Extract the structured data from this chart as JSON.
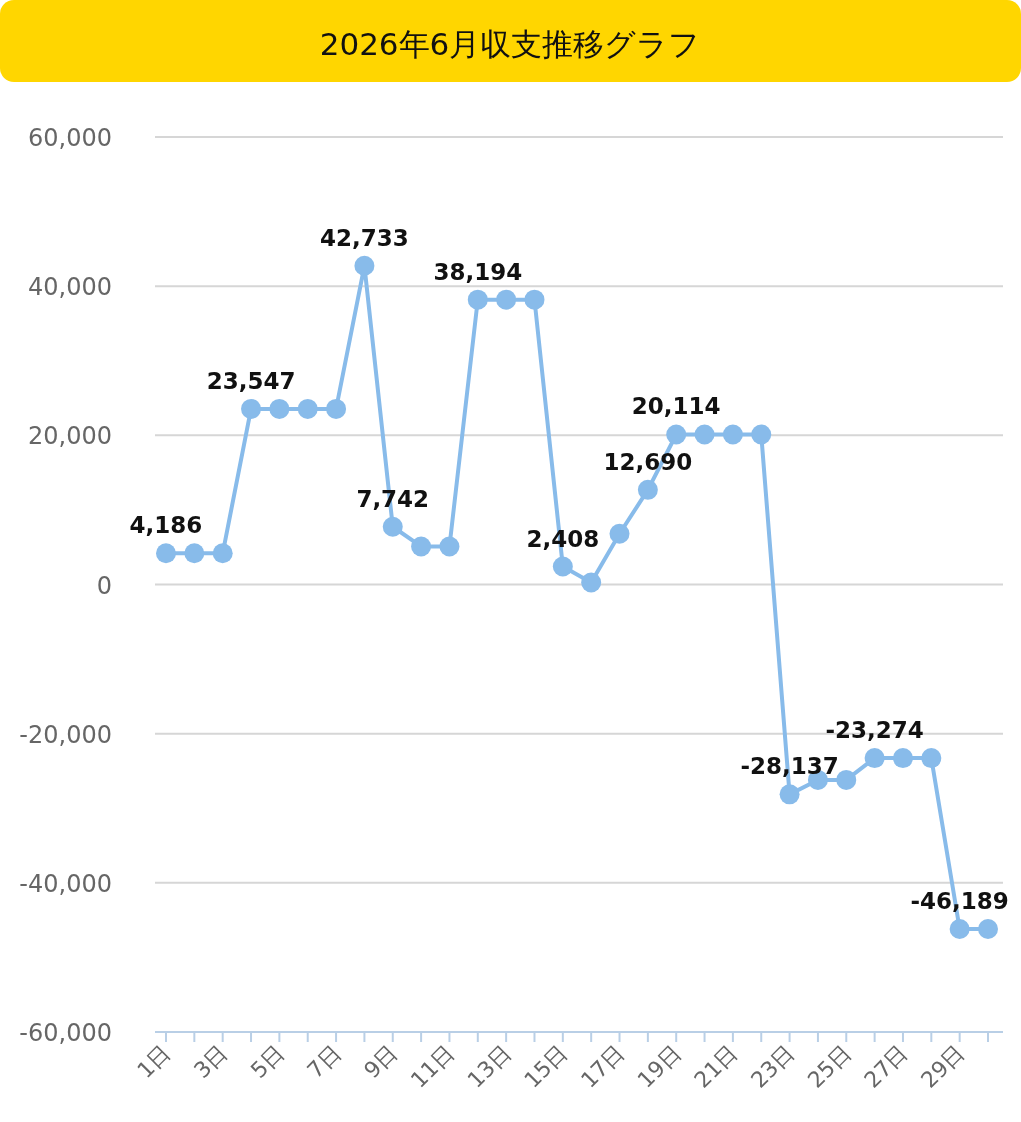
{
  "chart_data": {
    "type": "line",
    "title": "2026年6月収支推移グラフ",
    "categories": [
      "1日",
      null,
      "3日",
      null,
      "5日",
      null,
      "7日",
      null,
      "9日",
      null,
      "11日",
      null,
      "13日",
      null,
      "15日",
      null,
      "17日",
      null,
      "19日",
      null,
      "21日",
      null,
      "23日",
      null,
      "25日",
      null,
      "27日",
      null,
      "29日",
      null
    ],
    "values": [
      4186,
      4186,
      4186,
      23547,
      23547,
      23547,
      23547,
      42733,
      7742,
      5100,
      5100,
      38194,
      38194,
      38194,
      2408,
      270,
      6800,
      12690,
      20114,
      20114,
      20114,
      20114,
      -28137,
      -26200,
      -26200,
      -23274,
      -23274,
      -23274,
      -46189,
      -46189
    ],
    "value_labels": [
      "4,186",
      null,
      null,
      "23,547",
      null,
      null,
      null,
      "42,733",
      "7,742",
      null,
      null,
      "38,194",
      null,
      null,
      "2,408",
      null,
      null,
      "12,690",
      "20,114",
      null,
      null,
      null,
      "-28,137",
      null,
      null,
      "-23,274",
      null,
      null,
      "-46,189",
      null
    ],
    "color": "#88bbea",
    "marker": "circle",
    "ylim": [
      -60000,
      60000
    ],
    "yticks": [
      {
        "value": -60000,
        "label": "-60,000"
      },
      {
        "value": -40000,
        "label": "-40,000"
      },
      {
        "value": -20000,
        "label": "-20,000"
      },
      0,
      {
        "value": 20000,
        "label": "20,000"
      },
      {
        "value": 40000,
        "label": "40,000"
      },
      {
        "value": 60000,
        "label": "60,000"
      }
    ],
    "grid": "y"
  }
}
